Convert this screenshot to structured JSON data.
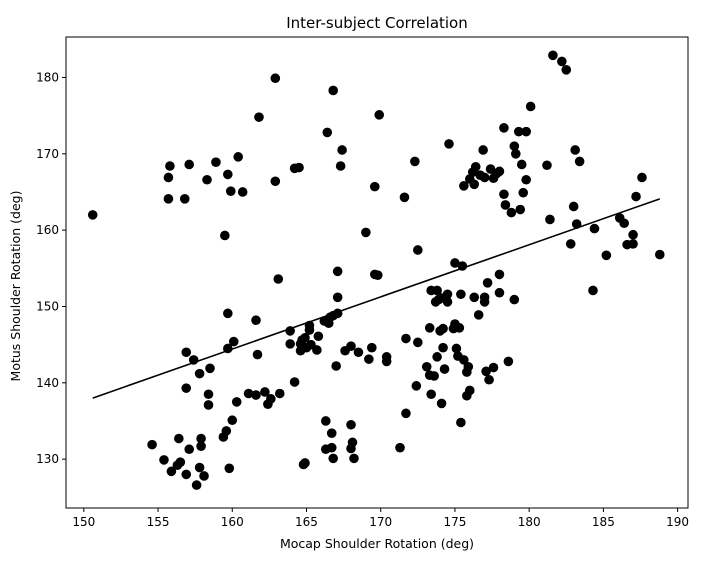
{
  "chart_data": {
    "type": "scatter",
    "title": "Inter-subject Correlation",
    "xlabel": "Mocap Shoulder Rotation (deg)",
    "ylabel": "Motus Shoulder Rotation (deg)",
    "xlim": [
      148.8,
      190.7
    ],
    "ylim": [
      123.6,
      185.3
    ],
    "xticks": [
      150,
      155,
      160,
      165,
      170,
      175,
      180,
      185,
      190
    ],
    "yticks": [
      130,
      140,
      150,
      160,
      170,
      180
    ],
    "grid": false,
    "marker_color": "#000000",
    "trend_line": {
      "x": [
        150.6,
        188.8
      ],
      "y": [
        138.0,
        164.1
      ]
    },
    "points": [
      [
        150.6,
        162.0
      ],
      [
        154.6,
        131.9
      ],
      [
        155.4,
        129.9
      ],
      [
        155.8,
        168.4
      ],
      [
        155.7,
        166.9
      ],
      [
        155.7,
        164.1
      ],
      [
        155.9,
        128.4
      ],
      [
        156.3,
        129.2
      ],
      [
        156.4,
        132.7
      ],
      [
        156.5,
        129.6
      ],
      [
        156.8,
        164.1
      ],
      [
        156.9,
        144.0
      ],
      [
        156.9,
        139.3
      ],
      [
        156.9,
        128.0
      ],
      [
        157.1,
        168.6
      ],
      [
        157.1,
        131.3
      ],
      [
        157.4,
        143.0
      ],
      [
        157.6,
        126.6
      ],
      [
        157.8,
        141.2
      ],
      [
        157.8,
        128.9
      ],
      [
        157.9,
        131.7
      ],
      [
        157.9,
        132.7
      ],
      [
        158.1,
        127.8
      ],
      [
        158.3,
        166.6
      ],
      [
        158.4,
        138.5
      ],
      [
        158.4,
        137.1
      ],
      [
        158.5,
        141.9
      ],
      [
        158.9,
        168.9
      ],
      [
        159.4,
        132.9
      ],
      [
        159.5,
        159.3
      ],
      [
        159.6,
        133.7
      ],
      [
        159.7,
        167.3
      ],
      [
        159.7,
        149.1
      ],
      [
        159.7,
        144.5
      ],
      [
        159.8,
        128.8
      ],
      [
        159.9,
        165.1
      ],
      [
        160.0,
        135.1
      ],
      [
        160.1,
        145.4
      ],
      [
        160.3,
        137.5
      ],
      [
        160.4,
        169.6
      ],
      [
        160.7,
        165.0
      ],
      [
        161.1,
        138.6
      ],
      [
        161.6,
        138.4
      ],
      [
        161.6,
        148.2
      ],
      [
        161.7,
        143.7
      ],
      [
        161.8,
        174.8
      ],
      [
        162.2,
        138.8
      ],
      [
        162.4,
        137.2
      ],
      [
        162.6,
        137.9
      ],
      [
        162.9,
        166.4
      ],
      [
        162.9,
        179.9
      ],
      [
        163.1,
        153.6
      ],
      [
        163.2,
        138.6
      ],
      [
        163.9,
        146.8
      ],
      [
        163.9,
        145.1
      ],
      [
        164.2,
        140.1
      ],
      [
        164.2,
        168.1
      ],
      [
        164.5,
        168.2
      ],
      [
        164.6,
        145.1
      ],
      [
        164.6,
        144.2
      ],
      [
        164.7,
        145.6
      ],
      [
        164.8,
        129.3
      ],
      [
        164.9,
        129.5
      ],
      [
        164.9,
        145.9
      ],
      [
        165.0,
        144.6
      ],
      [
        165.2,
        146.9
      ],
      [
        165.2,
        147.5
      ],
      [
        165.3,
        145.0
      ],
      [
        165.7,
        144.3
      ],
      [
        165.8,
        146.1
      ],
      [
        166.2,
        148.1
      ],
      [
        166.3,
        135.0
      ],
      [
        166.3,
        131.3
      ],
      [
        166.4,
        172.8
      ],
      [
        166.5,
        147.8
      ],
      [
        166.6,
        148.6
      ],
      [
        166.7,
        131.5
      ],
      [
        166.7,
        133.4
      ],
      [
        166.8,
        148.8
      ],
      [
        166.8,
        178.3
      ],
      [
        166.8,
        130.1
      ],
      [
        167.0,
        142.2
      ],
      [
        167.1,
        149.1
      ],
      [
        167.1,
        154.6
      ],
      [
        167.1,
        151.2
      ],
      [
        167.3,
        168.4
      ],
      [
        167.4,
        170.5
      ],
      [
        167.6,
        144.2
      ],
      [
        168.0,
        134.5
      ],
      [
        168.0,
        144.8
      ],
      [
        168.0,
        131.4
      ],
      [
        168.1,
        132.2
      ],
      [
        168.2,
        130.1
      ],
      [
        168.5,
        144.0
      ],
      [
        169.0,
        159.7
      ],
      [
        169.2,
        143.1
      ],
      [
        169.4,
        144.6
      ],
      [
        169.6,
        154.2
      ],
      [
        169.6,
        165.7
      ],
      [
        169.8,
        154.1
      ],
      [
        169.9,
        175.1
      ],
      [
        170.4,
        143.4
      ],
      [
        170.4,
        142.8
      ],
      [
        171.3,
        131.5
      ],
      [
        171.6,
        164.3
      ],
      [
        171.7,
        145.8
      ],
      [
        171.7,
        136.0
      ],
      [
        172.3,
        169.0
      ],
      [
        172.4,
        139.6
      ],
      [
        172.5,
        145.3
      ],
      [
        172.5,
        157.4
      ],
      [
        173.1,
        142.1
      ],
      [
        173.3,
        147.2
      ],
      [
        173.3,
        141.0
      ],
      [
        173.4,
        152.1
      ],
      [
        173.4,
        138.5
      ],
      [
        173.6,
        140.9
      ],
      [
        173.7,
        150.6
      ],
      [
        173.8,
        152.1
      ],
      [
        173.8,
        143.4
      ],
      [
        173.9,
        150.9
      ],
      [
        174.0,
        146.8
      ],
      [
        174.1,
        151.1
      ],
      [
        174.1,
        137.3
      ],
      [
        174.2,
        144.6
      ],
      [
        174.2,
        147.1
      ],
      [
        174.3,
        141.8
      ],
      [
        174.5,
        151.6
      ],
      [
        174.5,
        150.6
      ],
      [
        174.6,
        171.3
      ],
      [
        174.9,
        147.1
      ],
      [
        175.0,
        147.7
      ],
      [
        175.0,
        155.7
      ],
      [
        175.1,
        144.5
      ],
      [
        175.2,
        143.5
      ],
      [
        175.3,
        147.2
      ],
      [
        175.4,
        151.6
      ],
      [
        175.4,
        134.8
      ],
      [
        175.5,
        155.3
      ],
      [
        175.6,
        143.0
      ],
      [
        175.6,
        165.8
      ],
      [
        175.8,
        141.4
      ],
      [
        175.8,
        138.3
      ],
      [
        175.9,
        142.1
      ],
      [
        176.0,
        166.7
      ],
      [
        176.0,
        139.0
      ],
      [
        176.2,
        167.6
      ],
      [
        176.3,
        151.2
      ],
      [
        176.3,
        166.0
      ],
      [
        176.4,
        168.3
      ],
      [
        176.6,
        148.9
      ],
      [
        176.7,
        167.2
      ],
      [
        176.9,
        170.5
      ],
      [
        177.0,
        151.2
      ],
      [
        177.0,
        150.6
      ],
      [
        177.0,
        166.9
      ],
      [
        177.1,
        141.5
      ],
      [
        177.2,
        153.1
      ],
      [
        177.3,
        140.4
      ],
      [
        177.4,
        168.0
      ],
      [
        177.6,
        166.8
      ],
      [
        177.6,
        142.0
      ],
      [
        177.8,
        167.4
      ],
      [
        178.0,
        151.8
      ],
      [
        178.0,
        167.7
      ],
      [
        178.0,
        154.2
      ],
      [
        178.3,
        173.4
      ],
      [
        178.3,
        164.7
      ],
      [
        178.4,
        163.3
      ],
      [
        178.6,
        142.8
      ],
      [
        178.8,
        162.3
      ],
      [
        179.0,
        150.9
      ],
      [
        179.0,
        171.0
      ],
      [
        179.1,
        170.0
      ],
      [
        179.3,
        172.9
      ],
      [
        179.4,
        162.7
      ],
      [
        179.5,
        168.6
      ],
      [
        179.6,
        164.9
      ],
      [
        179.8,
        172.9
      ],
      [
        179.8,
        166.6
      ],
      [
        180.1,
        176.2
      ],
      [
        181.2,
        168.5
      ],
      [
        181.4,
        161.4
      ],
      [
        181.6,
        182.9
      ],
      [
        182.2,
        182.1
      ],
      [
        182.5,
        181.0
      ],
      [
        182.8,
        158.2
      ],
      [
        183.0,
        163.1
      ],
      [
        183.1,
        170.5
      ],
      [
        183.2,
        160.8
      ],
      [
        183.4,
        169.0
      ],
      [
        184.3,
        152.1
      ],
      [
        184.4,
        160.2
      ],
      [
        185.2,
        156.7
      ],
      [
        186.1,
        161.6
      ],
      [
        186.4,
        160.9
      ],
      [
        186.6,
        158.1
      ],
      [
        187.0,
        159.4
      ],
      [
        187.0,
        158.2
      ],
      [
        187.2,
        164.4
      ],
      [
        187.6,
        166.9
      ],
      [
        188.8,
        156.8
      ]
    ]
  }
}
